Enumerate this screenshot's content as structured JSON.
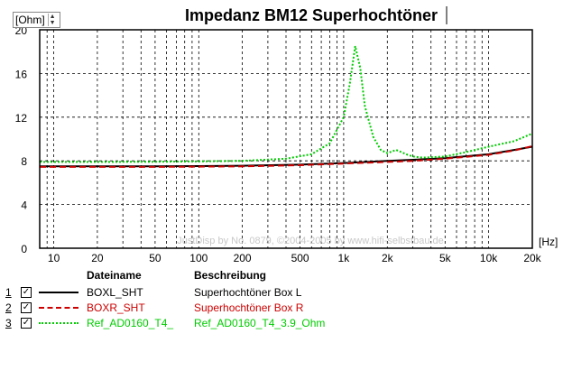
{
  "chart_data": {
    "type": "line",
    "title": "Impedanz BM12 Superhochtöner",
    "ylabel": "[Ohm]",
    "xlabel": "[Hz]",
    "x_scale": "log",
    "xlim": [
      8,
      20000
    ],
    "ylim": [
      0,
      20
    ],
    "y_ticks": [
      "0",
      "4",
      "8",
      "12",
      "16",
      "20"
    ],
    "x_ticks": [
      {
        "value": 10,
        "label": "10"
      },
      {
        "value": 20,
        "label": "20"
      },
      {
        "value": 50,
        "label": "50"
      },
      {
        "value": 100,
        "label": "100"
      },
      {
        "value": 200,
        "label": "200"
      },
      {
        "value": 500,
        "label": "500"
      },
      {
        "value": 1000,
        "label": "1k"
      },
      {
        "value": 2000,
        "label": "2k"
      },
      {
        "value": 5000,
        "label": "5k"
      },
      {
        "value": 10000,
        "label": "10k"
      },
      {
        "value": 20000,
        "label": "20k"
      }
    ],
    "grid": true,
    "watermark": "JustDisp by No. 0879, ©2004-2005 by www.hifi-selbstbau.de",
    "series": [
      {
        "name": "BOXL_SHT",
        "color": "#000000",
        "dash": "solid",
        "x": [
          8,
          20,
          50,
          100,
          200,
          500,
          1000,
          2000,
          3000,
          5000,
          10000,
          15000,
          20000
        ],
        "y": [
          7.5,
          7.5,
          7.5,
          7.52,
          7.55,
          7.65,
          7.8,
          8.0,
          8.1,
          8.25,
          8.6,
          9.0,
          9.3
        ]
      },
      {
        "name": "BOXR_SHT",
        "color": "#cc0000",
        "dash": "dashed",
        "x": [
          8,
          20,
          50,
          100,
          200,
          500,
          1000,
          2000,
          3000,
          5000,
          10000,
          15000,
          20000
        ],
        "y": [
          7.45,
          7.45,
          7.45,
          7.47,
          7.5,
          7.6,
          7.75,
          7.9,
          8.0,
          8.2,
          8.55,
          8.95,
          9.35
        ]
      },
      {
        "name": "Ref_AD0160_T4_",
        "color": "#00cc00",
        "dash": "dotted",
        "x": [
          8,
          20,
          50,
          100,
          200,
          400,
          600,
          800,
          1000,
          1100,
          1200,
          1300,
          1400,
          1600,
          1800,
          2000,
          2300,
          2700,
          3000,
          3500,
          5000,
          7000,
          10000,
          15000,
          20000
        ],
        "y": [
          7.9,
          7.9,
          7.92,
          7.95,
          8.0,
          8.2,
          8.6,
          9.6,
          12.0,
          15.0,
          18.5,
          16.5,
          13.0,
          10.2,
          9.0,
          8.7,
          9.0,
          8.6,
          8.4,
          8.3,
          8.4,
          8.8,
          9.3,
          9.8,
          10.5
        ]
      }
    ]
  },
  "legend": {
    "col_file": "Dateiname",
    "col_desc": "Beschreibung",
    "rows": [
      {
        "index": "1",
        "checked": "✓",
        "file": "BOXL_SHT",
        "desc": "Superhochtöner Box L",
        "color": "#000000"
      },
      {
        "index": "2",
        "checked": "✓",
        "file": "BOXR_SHT",
        "desc": "Superhochtöner Box R",
        "color": "#cc0000"
      },
      {
        "index": "3",
        "checked": "✓",
        "file": "Ref_AD0160_T4_",
        "desc": "Ref_AD0160_T4_3.9_Ohm",
        "color": "#00cc00"
      }
    ]
  },
  "spin_glyphs": {
    "up": "▲",
    "down": "▼"
  }
}
